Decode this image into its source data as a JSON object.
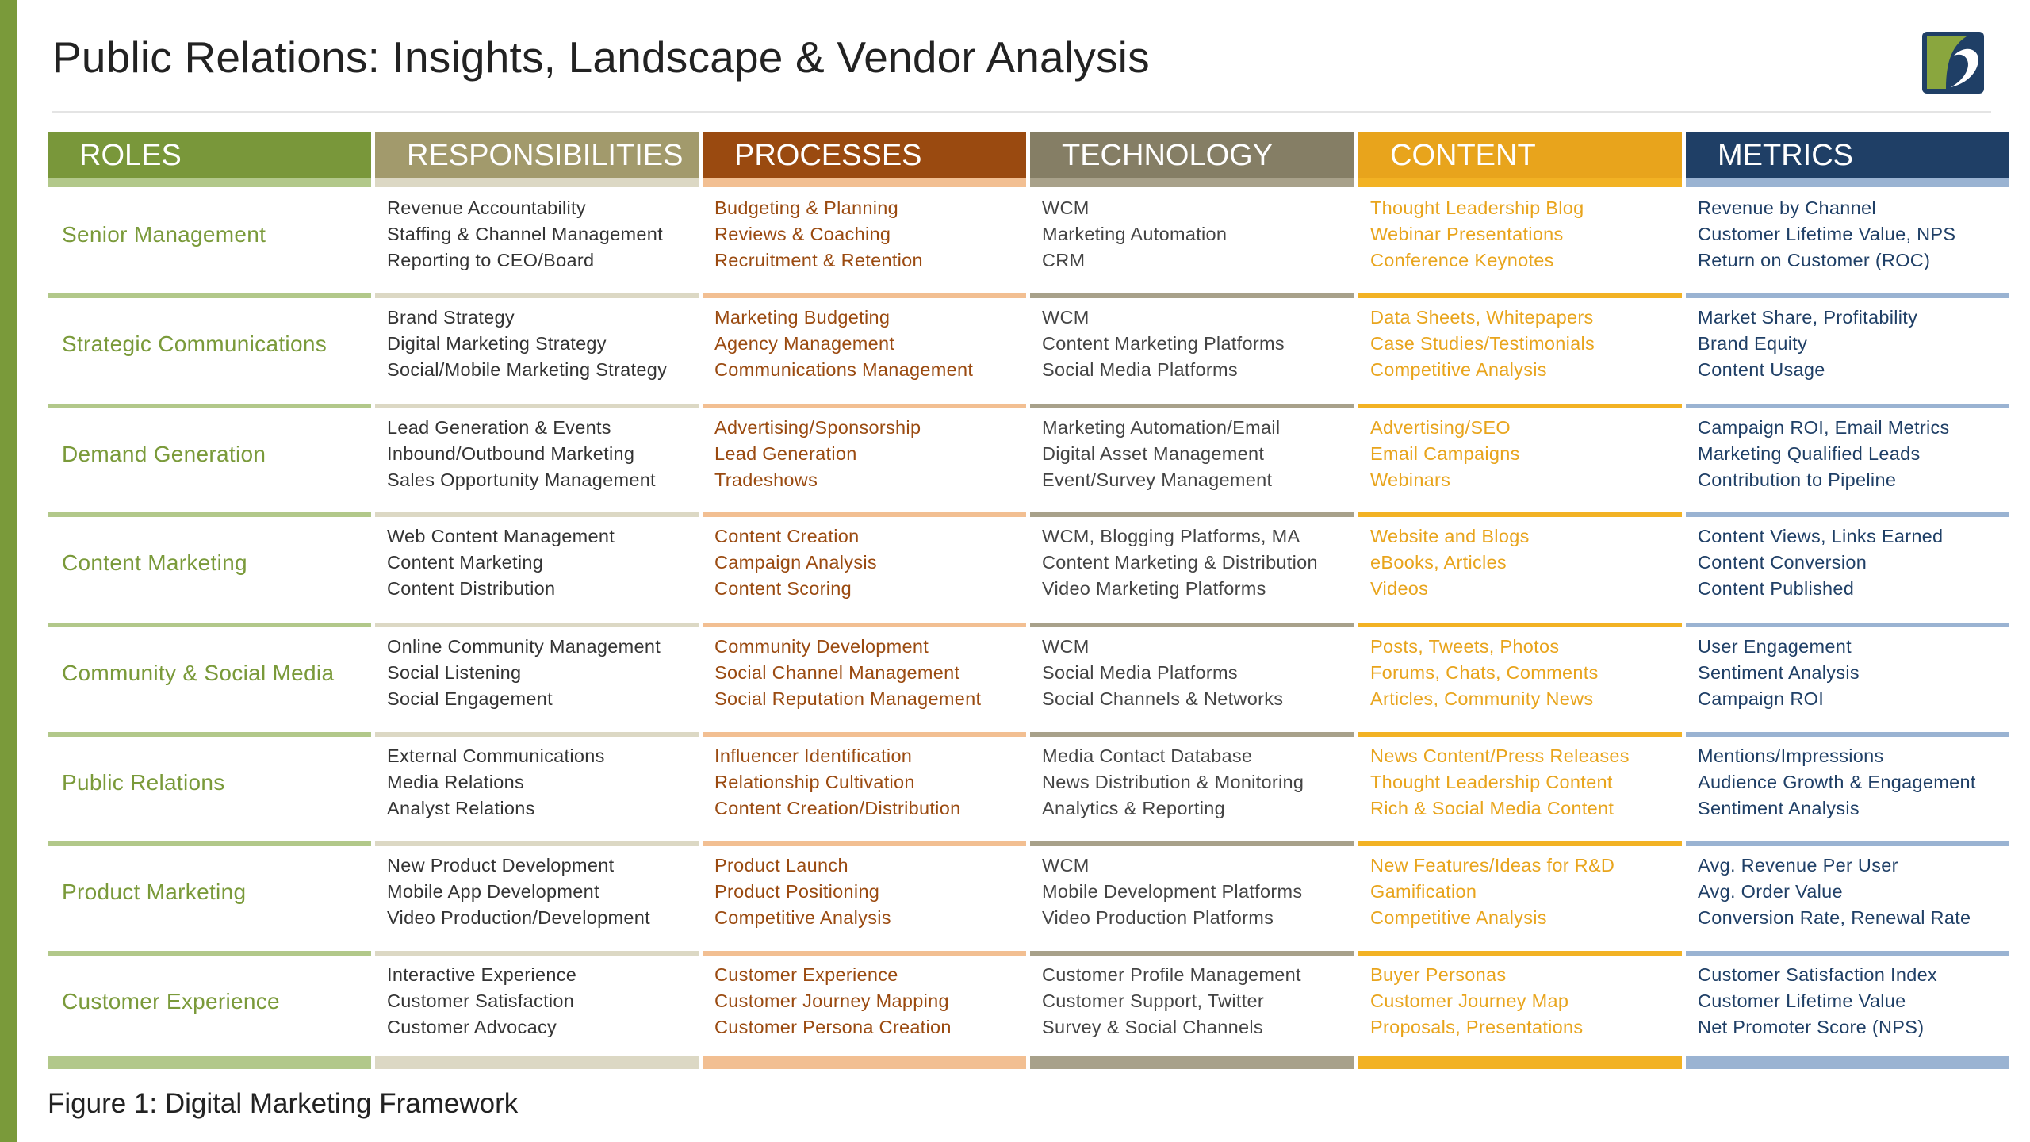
{
  "title": "Public Relations: Insights, Landscape & Vendor Analysis",
  "caption": "Figure 1: Digital Marketing Framework",
  "columns": [
    {
      "key": "roles",
      "label": "ROLES",
      "header_color": "#79973a",
      "rule_color": "#b2c88a",
      "text_color": "#7a9a3a"
    },
    {
      "key": "responsibilities",
      "label": "RESPONSIBILITIES",
      "header_color": "#a29a6c",
      "rule_color": "#dcd8c4",
      "text_color": "#333333"
    },
    {
      "key": "processes",
      "label": "PROCESSES",
      "header_color": "#9a4a10",
      "rule_color": "#f2bf92",
      "text_color": "#9a4a10"
    },
    {
      "key": "technology",
      "label": "TECHNOLOGY",
      "header_color": "#857e65",
      "rule_color": "#a8a18a",
      "text_color": "#444444"
    },
    {
      "key": "content",
      "label": "CONTENT",
      "header_color": "#e8a41c",
      "rule_color": "#f2b224",
      "text_color": "#e8a41c"
    },
    {
      "key": "metrics",
      "label": "METRICS",
      "header_color": "#1f3f66",
      "rule_color": "#9ab3d2",
      "text_color": "#1f3f66"
    }
  ],
  "rows": [
    {
      "role": "Senior Management",
      "responsibilities": [
        "Revenue Accountability",
        "Staffing & Channel Management",
        "Reporting to CEO/Board"
      ],
      "processes": [
        "Budgeting & Planning",
        "Reviews & Coaching",
        "Recruitment & Retention"
      ],
      "technology": [
        "WCM",
        "Marketing Automation",
        "CRM"
      ],
      "content": [
        "Thought Leadership Blog",
        "Webinar Presentations",
        "Conference Keynotes"
      ],
      "metrics": [
        "Revenue by Channel",
        "Customer Lifetime Value, NPS",
        "Return on Customer (ROC)"
      ]
    },
    {
      "role": "Strategic Communications",
      "responsibilities": [
        "Brand Strategy",
        "Digital Marketing Strategy",
        "Social/Mobile Marketing Strategy"
      ],
      "processes": [
        "Marketing Budgeting",
        "Agency Management",
        "Communications Management"
      ],
      "technology": [
        "WCM",
        "Content Marketing Platforms",
        "Social Media Platforms"
      ],
      "content": [
        "Data Sheets, Whitepapers",
        "Case Studies/Testimonials",
        "Competitive Analysis"
      ],
      "metrics": [
        "Market Share, Profitability",
        "Brand Equity",
        "Content Usage"
      ]
    },
    {
      "role": "Demand Generation",
      "responsibilities": [
        "Lead Generation & Events",
        "Inbound/Outbound Marketing",
        "Sales Opportunity Management"
      ],
      "processes": [
        "Advertising/Sponsorship",
        "Lead Generation",
        "Tradeshows"
      ],
      "technology": [
        "Marketing Automation/Email",
        "Digital Asset Management",
        "Event/Survey Management"
      ],
      "content": [
        "Advertising/SEO",
        "Email Campaigns",
        "Webinars"
      ],
      "metrics": [
        "Campaign ROI, Email Metrics",
        "Marketing Qualified Leads",
        "Contribution to Pipeline"
      ]
    },
    {
      "role": "Content Marketing",
      "responsibilities": [
        "Web Content Management",
        "Content Marketing",
        "Content Distribution"
      ],
      "processes": [
        "Content Creation",
        "Campaign Analysis",
        "Content Scoring"
      ],
      "technology": [
        "WCM, Blogging Platforms, MA",
        "Content Marketing & Distribution",
        "Video Marketing Platforms"
      ],
      "content": [
        "Website and Blogs",
        "eBooks, Articles",
        "Videos"
      ],
      "metrics": [
        "Content Views, Links Earned",
        "Content Conversion",
        "Content Published"
      ]
    },
    {
      "role": "Community & Social Media",
      "responsibilities": [
        "Online Community Management",
        "Social Listening",
        "Social Engagement"
      ],
      "processes": [
        "Community Development",
        "Social Channel Management",
        "Social Reputation Management"
      ],
      "technology": [
        "WCM",
        "Social Media Platforms",
        "Social Channels & Networks"
      ],
      "content": [
        "Posts, Tweets, Photos",
        "Forums, Chats, Comments",
        "Articles, Community News"
      ],
      "metrics": [
        "User Engagement",
        "Sentiment Analysis",
        "Campaign ROI"
      ]
    },
    {
      "role": "Public Relations",
      "responsibilities": [
        "External Communications",
        "Media Relations",
        "Analyst Relations"
      ],
      "processes": [
        "Influencer Identification",
        "Relationship Cultivation",
        "Content Creation/Distribution"
      ],
      "technology": [
        "Media Contact Database",
        "News Distribution & Monitoring",
        "Analytics & Reporting"
      ],
      "content": [
        "News Content/Press Releases",
        "Thought Leadership Content",
        "Rich & Social Media Content"
      ],
      "metrics": [
        "Mentions/Impressions",
        "Audience Growth & Engagement",
        "Sentiment Analysis"
      ]
    },
    {
      "role": "Product Marketing",
      "responsibilities": [
        "New Product Development",
        "Mobile App Development",
        "Video Production/Development"
      ],
      "processes": [
        "Product Launch",
        "Product Positioning",
        "Competitive Analysis"
      ],
      "technology": [
        "WCM",
        "Mobile Development Platforms",
        "Video Production Platforms"
      ],
      "content": [
        "New Features/Ideas for R&D",
        "Gamification",
        "Competitive Analysis"
      ],
      "metrics": [
        "Avg. Revenue Per User",
        "Avg. Order Value",
        "Conversion Rate, Renewal Rate"
      ]
    },
    {
      "role": "Customer Experience",
      "responsibilities": [
        "Interactive Experience",
        "Customer Satisfaction",
        "Customer Advocacy"
      ],
      "processes": [
        "Customer Experience",
        "Customer Journey Mapping",
        "Customer Persona Creation"
      ],
      "technology": [
        "Customer Profile Management",
        "Customer Support, Twitter",
        "Survey & Social Channels"
      ],
      "content": [
        "Buyer Personas",
        "Customer Journey Map",
        "Proposals, Presentations"
      ],
      "metrics": [
        "Customer Satisfaction Index",
        "Customer Lifetime Value",
        "Net Promoter Score (NPS)"
      ]
    }
  ]
}
